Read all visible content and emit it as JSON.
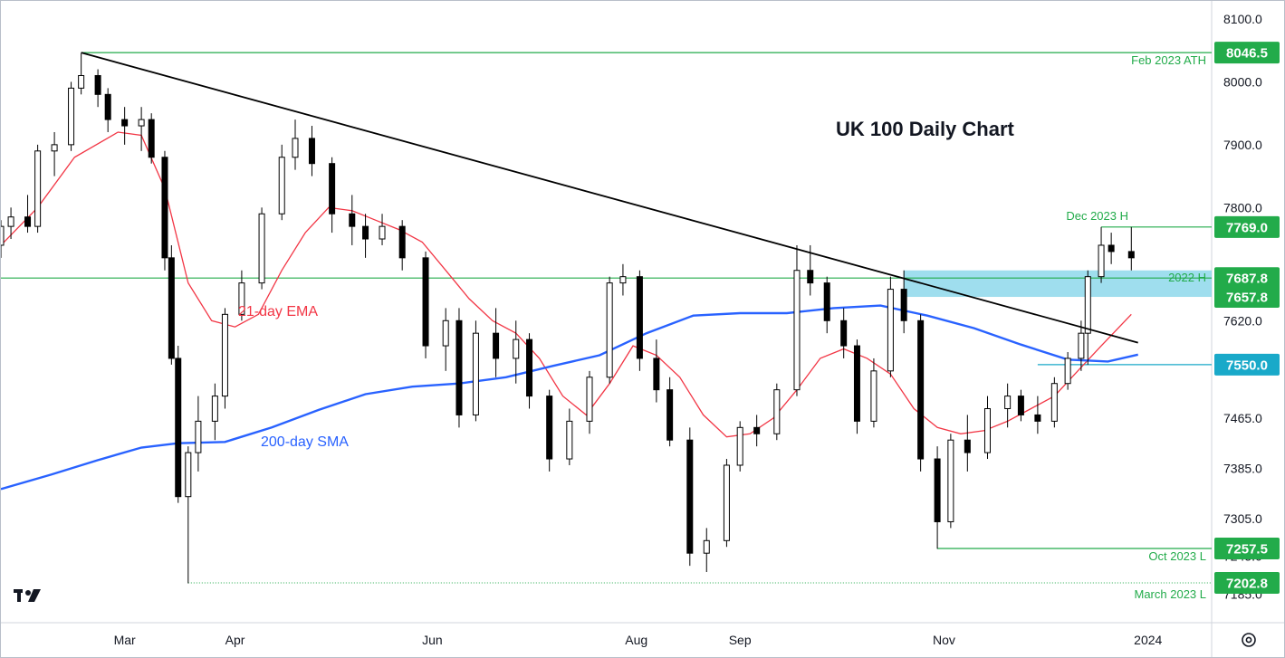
{
  "chart_data": {
    "type": "candlestick",
    "title": "UK 100 Daily Chart",
    "y_axis": {
      "range": [
        7160,
        8135
      ],
      "ticks": [
        "8100.0",
        "8000.0",
        "7900.0",
        "7800.0",
        "7620.0",
        "7465.0",
        "7385.0",
        "7305.0",
        "7245.0",
        "7185.0"
      ],
      "tick_values": [
        8100,
        8000,
        7900,
        7800,
        7620,
        7465,
        7385,
        7305,
        7245,
        7185
      ]
    },
    "x_axis": {
      "range": [
        "2023-01-23",
        "2024-01-10"
      ],
      "ticks": [
        {
          "label": "Mar",
          "date": "2023-03-01"
        },
        {
          "label": "Apr",
          "date": "2023-04-03"
        },
        {
          "label": "Jun",
          "date": "2023-06-01"
        },
        {
          "label": "Aug",
          "date": "2023-08-01"
        },
        {
          "label": "Sep",
          "date": "2023-09-01"
        },
        {
          "label": "Nov",
          "date": "2023-11-01"
        },
        {
          "label": "2024",
          "date": "2024-01-01"
        }
      ]
    },
    "key_levels": [
      {
        "value": 8046.5,
        "label": "8046.5",
        "annotation": "Feb 2023 ATH",
        "color": "#22ab4a",
        "style": "solid"
      },
      {
        "value": 7769.0,
        "label": "7769.0",
        "annotation": "Dec 2023 H",
        "color": "#22ab4a",
        "style": "solid"
      },
      {
        "value": 7687.8,
        "label": "7687.8",
        "annotation": "2022 H",
        "color": "#22ab4a",
        "style": "solid"
      },
      {
        "value": 7657.8,
        "label": "7657.8",
        "annotation": "",
        "color": "#22ab4a",
        "style": "zone"
      },
      {
        "value": 7550.0,
        "label": "7550.0",
        "annotation": "",
        "color": "#19a9c9",
        "style": "solid"
      },
      {
        "value": 7257.5,
        "label": "7257.5",
        "annotation": "Oct 2023 L",
        "color": "#22ab4a",
        "style": "solid"
      },
      {
        "value": 7202.8,
        "label": "7202.8",
        "annotation": "March 2023 L",
        "color": "#22ab4a",
        "style": "dotted"
      }
    ],
    "resistance_zone": {
      "from": 7657.8,
      "to": 7700,
      "color": "#7fd3e8"
    },
    "trendline": {
      "from": {
        "date": "2023-02-16",
        "value": 8046.5
      },
      "to": {
        "date": "2023-12-29",
        "value": 7585
      },
      "color": "#000000"
    },
    "series": [
      {
        "name": "21-day EMA",
        "color": "#f23645",
        "points": [
          [
            "2023-01-23",
            7740
          ],
          [
            "2023-02-03",
            7800
          ],
          [
            "2023-02-14",
            7880
          ],
          [
            "2023-02-27",
            7920
          ],
          [
            "2023-03-06",
            7915
          ],
          [
            "2023-03-13",
            7830
          ],
          [
            "2023-03-20",
            7680
          ],
          [
            "2023-03-27",
            7620
          ],
          [
            "2023-04-03",
            7610
          ],
          [
            "2023-04-10",
            7630
          ],
          [
            "2023-04-17",
            7700
          ],
          [
            "2023-04-24",
            7760
          ],
          [
            "2023-05-01",
            7800
          ],
          [
            "2023-05-08",
            7795
          ],
          [
            "2023-05-15",
            7780
          ],
          [
            "2023-05-22",
            7765
          ],
          [
            "2023-05-29",
            7745
          ],
          [
            "2023-06-05",
            7700
          ],
          [
            "2023-06-12",
            7655
          ],
          [
            "2023-06-19",
            7620
          ],
          [
            "2023-06-26",
            7600
          ],
          [
            "2023-07-03",
            7560
          ],
          [
            "2023-07-10",
            7500
          ],
          [
            "2023-07-17",
            7470
          ],
          [
            "2023-07-24",
            7520
          ],
          [
            "2023-07-31",
            7580
          ],
          [
            "2023-08-07",
            7565
          ],
          [
            "2023-08-14",
            7530
          ],
          [
            "2023-08-21",
            7470
          ],
          [
            "2023-08-28",
            7435
          ],
          [
            "2023-09-04",
            7440
          ],
          [
            "2023-09-11",
            7465
          ],
          [
            "2023-09-18",
            7510
          ],
          [
            "2023-09-25",
            7560
          ],
          [
            "2023-10-02",
            7575
          ],
          [
            "2023-10-09",
            7560
          ],
          [
            "2023-10-16",
            7535
          ],
          [
            "2023-10-23",
            7480
          ],
          [
            "2023-10-30",
            7450
          ],
          [
            "2023-11-06",
            7440
          ],
          [
            "2023-11-13",
            7445
          ],
          [
            "2023-11-20",
            7460
          ],
          [
            "2023-11-27",
            7480
          ],
          [
            "2023-12-04",
            7500
          ],
          [
            "2023-12-11",
            7540
          ],
          [
            "2023-12-18",
            7580
          ],
          [
            "2023-12-27",
            7630
          ]
        ]
      },
      {
        "name": "200-day SMA",
        "color": "#2962ff",
        "points": [
          [
            "2023-01-23",
            7352
          ],
          [
            "2023-02-07",
            7375
          ],
          [
            "2023-02-21",
            7398
          ],
          [
            "2023-03-06",
            7418
          ],
          [
            "2023-03-17",
            7425
          ],
          [
            "2023-03-31",
            7427
          ],
          [
            "2023-04-14",
            7450
          ],
          [
            "2023-04-28",
            7478
          ],
          [
            "2023-05-12",
            7503
          ],
          [
            "2023-05-26",
            7515
          ],
          [
            "2023-06-09",
            7520
          ],
          [
            "2023-06-23",
            7530
          ],
          [
            "2023-07-07",
            7548
          ],
          [
            "2023-07-21",
            7565
          ],
          [
            "2023-08-04",
            7600
          ],
          [
            "2023-08-18",
            7628
          ],
          [
            "2023-09-01",
            7632
          ],
          [
            "2023-09-15",
            7632
          ],
          [
            "2023-09-29",
            7640
          ],
          [
            "2023-10-13",
            7644
          ],
          [
            "2023-10-27",
            7628
          ],
          [
            "2023-11-10",
            7608
          ],
          [
            "2023-11-24",
            7582
          ],
          [
            "2023-12-08",
            7558
          ],
          [
            "2023-12-20",
            7555
          ],
          [
            "2023-12-29",
            7566
          ]
        ]
      },
      {
        "name": "candles",
        "color": "#000000",
        "points": [
          [
            "2023-01-23",
            7740,
            7780,
            7720,
            7770
          ],
          [
            "2023-01-26",
            7770,
            7800,
            7750,
            7785
          ],
          [
            "2023-01-31",
            7785,
            7820,
            7760,
            7770
          ],
          [
            "2023-02-03",
            7770,
            7900,
            7760,
            7890
          ],
          [
            "2023-02-08",
            7890,
            7920,
            7850,
            7900
          ],
          [
            "2023-02-13",
            7900,
            8000,
            7890,
            7990
          ],
          [
            "2023-02-16",
            7990,
            8046,
            7980,
            8010
          ],
          [
            "2023-02-21",
            8010,
            8020,
            7960,
            7980
          ],
          [
            "2023-02-24",
            7980,
            7990,
            7920,
            7940
          ],
          [
            "2023-03-01",
            7940,
            7960,
            7900,
            7930
          ],
          [
            "2023-03-06",
            7930,
            7960,
            7890,
            7940
          ],
          [
            "2023-03-09",
            7940,
            7950,
            7870,
            7880
          ],
          [
            "2023-03-13",
            7880,
            7890,
            7700,
            7720
          ],
          [
            "2023-03-15",
            7720,
            7740,
            7550,
            7560
          ],
          [
            "2023-03-17",
            7560,
            7580,
            7330,
            7340
          ],
          [
            "2023-03-20",
            7340,
            7420,
            7202,
            7410
          ],
          [
            "2023-03-23",
            7410,
            7500,
            7380,
            7460
          ],
          [
            "2023-03-28",
            7460,
            7520,
            7430,
            7500
          ],
          [
            "2023-03-31",
            7500,
            7640,
            7480,
            7630
          ],
          [
            "2023-04-05",
            7630,
            7700,
            7620,
            7680
          ],
          [
            "2023-04-11",
            7680,
            7800,
            7670,
            7790
          ],
          [
            "2023-04-17",
            7790,
            7900,
            7780,
            7880
          ],
          [
            "2023-04-21",
            7880,
            7940,
            7860,
            7910
          ],
          [
            "2023-04-26",
            7910,
            7930,
            7850,
            7870
          ],
          [
            "2023-05-02",
            7870,
            7880,
            7760,
            7790
          ],
          [
            "2023-05-08",
            7790,
            7820,
            7740,
            7770
          ],
          [
            "2023-05-12",
            7770,
            7790,
            7720,
            7750
          ],
          [
            "2023-05-17",
            7750,
            7790,
            7740,
            7770
          ],
          [
            "2023-05-23",
            7770,
            7780,
            7700,
            7720
          ],
          [
            "2023-05-30",
            7720,
            7730,
            7560,
            7580
          ],
          [
            "2023-06-05",
            7580,
            7640,
            7540,
            7620
          ],
          [
            "2023-06-09",
            7620,
            7640,
            7450,
            7470
          ],
          [
            "2023-06-14",
            7470,
            7620,
            7460,
            7600
          ],
          [
            "2023-06-20",
            7600,
            7640,
            7530,
            7560
          ],
          [
            "2023-06-26",
            7560,
            7620,
            7520,
            7590
          ],
          [
            "2023-06-30",
            7590,
            7600,
            7480,
            7500
          ],
          [
            "2023-07-06",
            7500,
            7510,
            7380,
            7400
          ],
          [
            "2023-07-12",
            7400,
            7480,
            7390,
            7460
          ],
          [
            "2023-07-18",
            7460,
            7540,
            7440,
            7530
          ],
          [
            "2023-07-24",
            7530,
            7690,
            7520,
            7680
          ],
          [
            "2023-07-28",
            7680,
            7710,
            7660,
            7690
          ],
          [
            "2023-08-02",
            7690,
            7700,
            7540,
            7560
          ],
          [
            "2023-08-07",
            7560,
            7590,
            7490,
            7510
          ],
          [
            "2023-08-11",
            7510,
            7530,
            7420,
            7430
          ],
          [
            "2023-08-17",
            7430,
            7450,
            7230,
            7250
          ],
          [
            "2023-08-22",
            7250,
            7290,
            7220,
            7270
          ],
          [
            "2023-08-28",
            7270,
            7400,
            7260,
            7390
          ],
          [
            "2023-09-01",
            7390,
            7460,
            7380,
            7450
          ],
          [
            "2023-09-06",
            7450,
            7470,
            7420,
            7440
          ],
          [
            "2023-09-12",
            7440,
            7520,
            7430,
            7510
          ],
          [
            "2023-09-18",
            7510,
            7740,
            7500,
            7700
          ],
          [
            "2023-09-22",
            7700,
            7740,
            7660,
            7680
          ],
          [
            "2023-09-27",
            7680,
            7690,
            7600,
            7620
          ],
          [
            "2023-10-02",
            7620,
            7640,
            7560,
            7580
          ],
          [
            "2023-10-06",
            7580,
            7590,
            7440,
            7460
          ],
          [
            "2023-10-11",
            7460,
            7560,
            7450,
            7540
          ],
          [
            "2023-10-16",
            7540,
            7690,
            7530,
            7670
          ],
          [
            "2023-10-20",
            7670,
            7700,
            7600,
            7620
          ],
          [
            "2023-10-25",
            7620,
            7630,
            7380,
            7400
          ],
          [
            "2023-10-30",
            7400,
            7420,
            7257,
            7300
          ],
          [
            "2023-11-03",
            7300,
            7440,
            7290,
            7430
          ],
          [
            "2023-11-08",
            7430,
            7470,
            7380,
            7410
          ],
          [
            "2023-11-14",
            7410,
            7500,
            7400,
            7480
          ],
          [
            "2023-11-20",
            7480,
            7520,
            7450,
            7500
          ],
          [
            "2023-11-24",
            7500,
            7510,
            7460,
            7470
          ],
          [
            "2023-11-29",
            7470,
            7500,
            7440,
            7460
          ],
          [
            "2023-12-04",
            7460,
            7530,
            7450,
            7520
          ],
          [
            "2023-12-08",
            7520,
            7570,
            7510,
            7560
          ],
          [
            "2023-12-12",
            7560,
            7620,
            7540,
            7600
          ],
          [
            "2023-12-14",
            7600,
            7700,
            7550,
            7690
          ],
          [
            "2023-12-18",
            7690,
            7769,
            7680,
            7740
          ],
          [
            "2023-12-21",
            7740,
            7760,
            7710,
            7730
          ],
          [
            "2023-12-27",
            7730,
            7769,
            7700,
            7720
          ]
        ]
      }
    ],
    "annotations": [
      {
        "text": "21-day EMA",
        "color": "#f23645"
      },
      {
        "text": "200-day SMA",
        "color": "#2962ff"
      }
    ],
    "grid": false,
    "legend": "none"
  },
  "logo": {
    "name": "tradingview-logo",
    "text": "17"
  },
  "settings_icon": "gear-icon"
}
